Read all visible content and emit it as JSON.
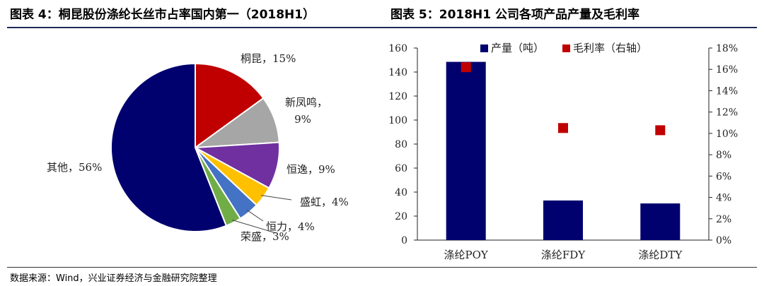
{
  "figure_left": {
    "title": "图表 4：桐昆股份涤纶长丝市占率国内第一（2018H1）"
  },
  "figure_right": {
    "title": "图表 5：2018H1 公司各项产品产量及毛利率"
  },
  "source": "数据来源：Wind，兴业证券经济与金融研究院整理",
  "chart_data": [
    {
      "type": "pie",
      "categories": [
        "桐昆",
        "新凤鸣",
        "恒逸",
        "盛虹",
        "恒力",
        "荣盛",
        "其他"
      ],
      "values": [
        15,
        9,
        9,
        4,
        4,
        3,
        56
      ],
      "labels": [
        "桐昆，15%",
        "新凤鸣，",
        "9%",
        "恒逸，9%",
        "盛虹，4%",
        "恒力，4%",
        "荣盛，3%",
        "其他，56%"
      ],
      "colors": [
        "#c00000",
        "#a6a6a6",
        "#7030a0",
        "#ffc000",
        "#4472c4",
        "#70ad47",
        "#00006e"
      ],
      "start_angle": "12 o'clock",
      "direction": "clockwise"
    },
    {
      "type": "bar",
      "categories": [
        "涤纶POY",
        "涤纶FDY",
        "涤纶DTY"
      ],
      "series": [
        {
          "name": "产量（吨）",
          "type": "bar",
          "axis": "left",
          "values": [
            148.5,
            33,
            30.5
          ],
          "color": "#00006e"
        },
        {
          "name": "毛利率（右轴）",
          "type": "scatter",
          "axis": "right",
          "values": [
            16.2,
            10.5,
            10.3
          ],
          "color": "#c00000"
        }
      ],
      "y_left": {
        "range": [
          0,
          160
        ],
        "ticks": [
          "0",
          "20",
          "40",
          "60",
          "80",
          "100",
          "120",
          "140",
          "160"
        ]
      },
      "y_right": {
        "range": [
          0,
          18
        ],
        "ticks": [
          "0%",
          "2%",
          "4%",
          "6%",
          "8%",
          "10%",
          "12%",
          "14%",
          "16%",
          "18%"
        ]
      },
      "legend_position": "top",
      "grid": false
    }
  ]
}
